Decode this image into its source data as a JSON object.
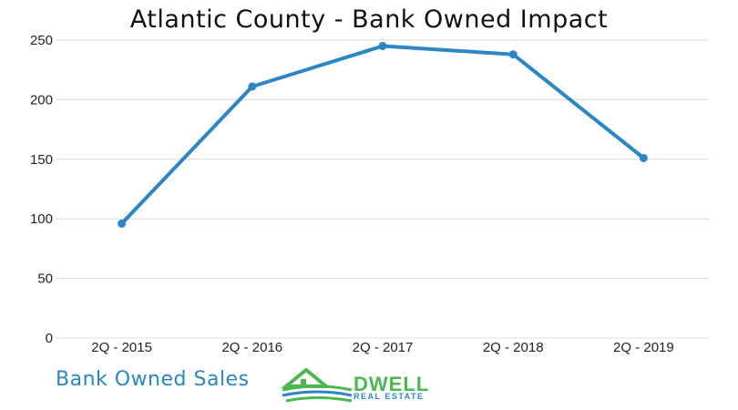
{
  "chart_data": {
    "type": "line",
    "title": "Atlantic County - Bank Owned Impact",
    "categories": [
      "2Q - 2015",
      "2Q - 2016",
      "2Q - 2017",
      "2Q - 2018",
      "2Q - 2019"
    ],
    "series": [
      {
        "name": "Bank Owned Sales",
        "values": [
          96,
          211,
          245,
          238,
          151
        ]
      }
    ],
    "xlabel": "",
    "ylabel": "",
    "ylim": [
      0,
      250
    ],
    "yticks": [
      0,
      50,
      100,
      150,
      200,
      250
    ],
    "grid": true,
    "legend": "bottom-left",
    "colors": {
      "line": "#2b86c5",
      "grid": "#d9d9d9",
      "text": "#222222"
    }
  },
  "logo": {
    "word": "DWELL",
    "sub": "REAL ESTATE"
  }
}
